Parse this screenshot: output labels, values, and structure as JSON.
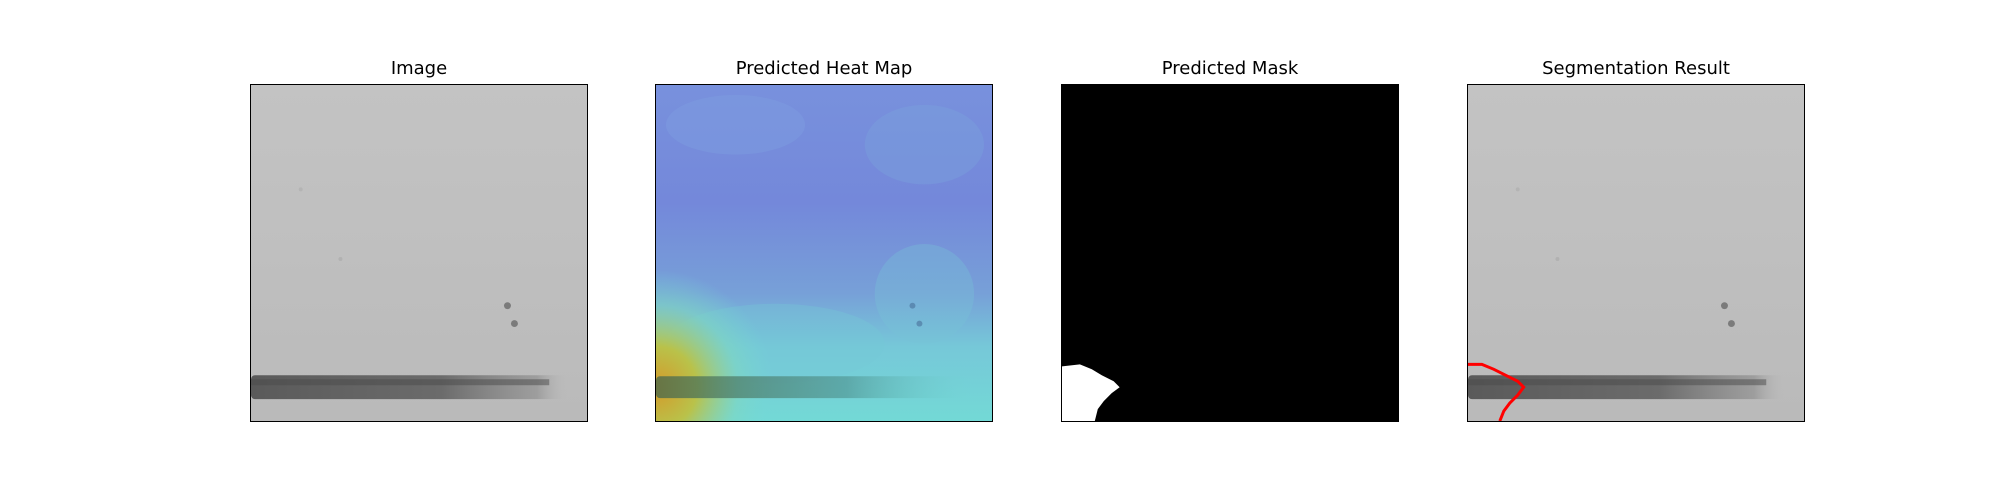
{
  "figure": {
    "panels": [
      {
        "title": "Image"
      },
      {
        "title": "Predicted Heat Map"
      },
      {
        "title": "Predicted Mask"
      },
      {
        "title": "Segmentation Result"
      }
    ]
  },
  "colors": {
    "background": "#ffffff",
    "gray_image": "#bcbcbc",
    "heat_low": "#7a8fdc",
    "heat_mid": "#74d4d2",
    "heat_high": "#c9a233",
    "mask_background": "#000000",
    "mask_foreground": "#ffffff",
    "contour": "#ff0000"
  }
}
